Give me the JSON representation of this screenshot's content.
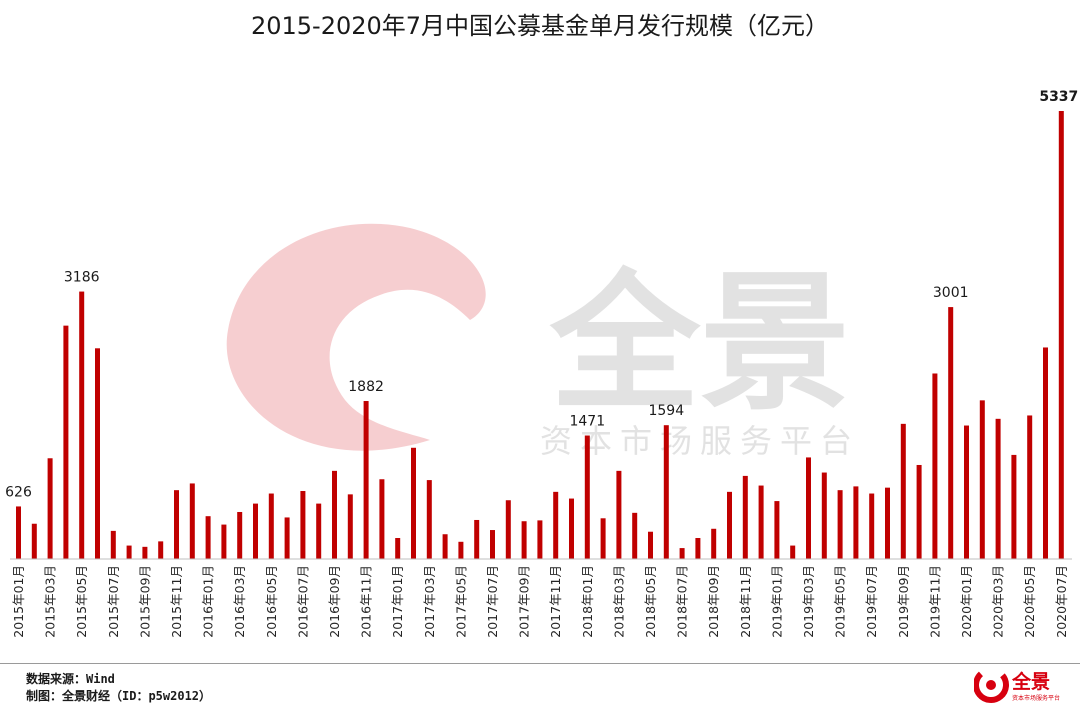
{
  "page": {
    "title": "2015-2020年7月中国公募基金单月发行规模（亿元）"
  },
  "watermark": {
    "brand": "全景",
    "subtitle": "资本市场服务平台"
  },
  "footer": {
    "source": "数据来源：Wind",
    "credit": "制图：全景财经（ID：p5w2012）",
    "logo_text": "全景",
    "logo_subtext": "资本市场服务平台"
  },
  "colors": {
    "bar": "#c00000",
    "watermark_swirl": "#f4c6c8",
    "watermark_text": "#dcdcdc",
    "logo_red": "#d7000f"
  },
  "chart_data": {
    "type": "bar",
    "title": "2015-2020年7月中国公募基金单月发行规模（亿元）",
    "xlabel": "",
    "ylabel": "",
    "ylim": [
      0,
      5337
    ],
    "grid": false,
    "legend": "none",
    "categories": [
      "2015年01月",
      "2015年02月",
      "2015年03月",
      "2015年04月",
      "2015年05月",
      "2015年06月",
      "2015年07月",
      "2015年08月",
      "2015年09月",
      "2015年10月",
      "2015年11月",
      "2015年12月",
      "2016年01月",
      "2016年02月",
      "2016年03月",
      "2016年04月",
      "2016年05月",
      "2016年06月",
      "2016年07月",
      "2016年08月",
      "2016年09月",
      "2016年10月",
      "2016年11月",
      "2016年12月",
      "2017年01月",
      "2017年02月",
      "2017年03月",
      "2017年04月",
      "2017年05月",
      "2017年06月",
      "2017年07月",
      "2017年08月",
      "2017年09月",
      "2017年10月",
      "2017年11月",
      "2017年12月",
      "2018年01月",
      "2018年02月",
      "2018年03月",
      "2018年04月",
      "2018年05月",
      "2018年06月",
      "2018年07月",
      "2018年08月",
      "2018年09月",
      "2018年10月",
      "2018年11月",
      "2018年12月",
      "2019年01月",
      "2019年02月",
      "2019年03月",
      "2019年04月",
      "2019年05月",
      "2019年06月",
      "2019年07月",
      "2019年08月",
      "2019年09月",
      "2019年10月",
      "2019年11月",
      "2019年12月",
      "2020年01月",
      "2020年02月",
      "2020年03月",
      "2020年04月",
      "2020年05月",
      "2020年06月",
      "2020年07月"
    ],
    "tick_labels": [
      "2015年01月",
      "2015年03月",
      "2015年05月",
      "2015年07月",
      "2015年09月",
      "2015年11月",
      "2016年01月",
      "2016年03月",
      "2016年05月",
      "2016年07月",
      "2016年09月",
      "2016年11月",
      "2017年01月",
      "2017年03月",
      "2017年05月",
      "2017年07月",
      "2017年09月",
      "2017年11月",
      "2018年01月",
      "2018年03月",
      "2018年05月",
      "2018年07月",
      "2018年09月",
      "2018年11月",
      "2019年01月",
      "2019年03月",
      "2019年05月",
      "2019年07月",
      "2019年09月",
      "2019年11月",
      "2020年01月",
      "2020年03月",
      "2020年05月",
      "2020年07月"
    ],
    "values": [
      626,
      420,
      1200,
      2780,
      3186,
      2510,
      335,
      160,
      145,
      210,
      820,
      900,
      510,
      410,
      560,
      660,
      780,
      495,
      810,
      660,
      1050,
      770,
      1882,
      950,
      250,
      1325,
      940,
      295,
      205,
      465,
      345,
      700,
      450,
      460,
      800,
      720,
      1471,
      485,
      1050,
      550,
      325,
      1594,
      130,
      250,
      360,
      800,
      990,
      875,
      690,
      160,
      1210,
      1030,
      820,
      865,
      780,
      850,
      1610,
      1120,
      2210,
      3001,
      1590,
      1890,
      1670,
      1240,
      1710,
      2520,
      5337
    ],
    "data_labels": [
      {
        "category": "2015年01月",
        "text": "626"
      },
      {
        "category": "2015年05月",
        "text": "3186"
      },
      {
        "category": "2016年11月",
        "text": "1882"
      },
      {
        "category": "2018年01月",
        "text": "1471"
      },
      {
        "category": "2018年06月",
        "text": "1594"
      },
      {
        "category": "2019年12月",
        "text": "3001"
      },
      {
        "category": "2020年07月",
        "text": "5337"
      }
    ]
  }
}
